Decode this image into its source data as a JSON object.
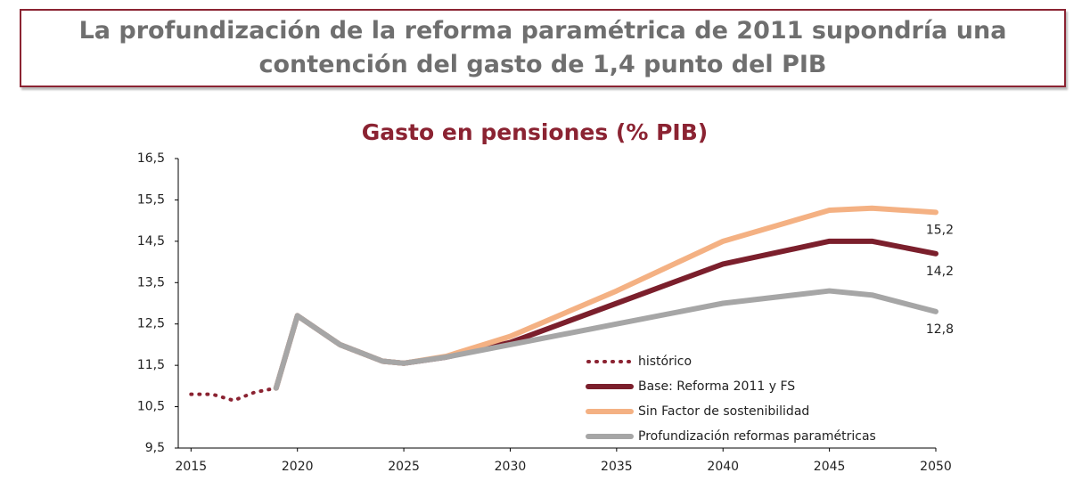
{
  "header": {
    "title": "La profundización de la reforma paramétrica de 2011 supondría una contención del gasto de 1,4 punto del PIB"
  },
  "chart_data": {
    "type": "line",
    "title": "Gasto en pensiones (% PIB)",
    "x": [
      2015,
      2016,
      2017,
      2018,
      2019,
      2020,
      2021,
      2022,
      2023,
      2024,
      2025,
      2027,
      2030,
      2035,
      2040,
      2045,
      2047,
      2050
    ],
    "series": [
      {
        "name": "histórico",
        "color": "#8B2332",
        "style": "dotted",
        "values": [
          10.8,
          10.8,
          10.65,
          10.85,
          10.95,
          null,
          null,
          null,
          null,
          null,
          null,
          null,
          null,
          null,
          null,
          null,
          null,
          null
        ]
      },
      {
        "name": "Base: Reforma 2011 y FS",
        "color": "#7B1F2C",
        "style": "solid",
        "values": [
          null,
          null,
          null,
          null,
          10.95,
          12.7,
          12.35,
          12.0,
          11.8,
          11.6,
          11.55,
          11.7,
          12.05,
          13.0,
          13.95,
          14.5,
          14.5,
          14.2
        ],
        "value_labels": [
          null,
          null,
          null,
          null,
          null,
          null,
          null,
          null,
          null,
          null,
          null,
          null,
          null,
          null,
          null,
          null,
          null,
          "14,2"
        ]
      },
      {
        "name": "Sin Factor de sostenibilidad",
        "color": "#F4B183",
        "style": "solid",
        "values": [
          null,
          null,
          null,
          null,
          10.95,
          12.7,
          12.35,
          12.0,
          11.8,
          11.6,
          11.55,
          11.72,
          12.2,
          13.3,
          14.5,
          15.25,
          15.3,
          15.2
        ],
        "value_labels": [
          null,
          null,
          null,
          null,
          null,
          null,
          null,
          null,
          null,
          null,
          null,
          null,
          null,
          null,
          null,
          null,
          null,
          "15,2"
        ]
      },
      {
        "name": "Profundización reformas paramétricas",
        "color": "#A6A6A6",
        "style": "solid",
        "values": [
          null,
          null,
          null,
          null,
          10.95,
          12.7,
          12.35,
          12.0,
          11.8,
          11.6,
          11.55,
          11.7,
          12.0,
          12.5,
          13.0,
          13.3,
          13.2,
          12.8
        ],
        "value_labels": [
          null,
          null,
          null,
          null,
          null,
          null,
          null,
          null,
          null,
          null,
          null,
          null,
          null,
          null,
          null,
          null,
          null,
          "12,8"
        ]
      }
    ],
    "xlim": [
      2014.4,
      2050
    ],
    "xticks": [
      2015,
      2020,
      2025,
      2030,
      2035,
      2040,
      2045,
      2050
    ],
    "ylim": [
      9.5,
      16.5
    ],
    "yticks": [
      {
        "value": 9.5,
        "label": "9,5"
      },
      {
        "value": 10.5,
        "label": "10,5"
      },
      {
        "value": 11.5,
        "label": "11,5"
      },
      {
        "value": 12.5,
        "label": "12,5"
      },
      {
        "value": 13.5,
        "label": "13,5"
      },
      {
        "value": 14.5,
        "label": "14,5"
      },
      {
        "value": 15.5,
        "label": "15,5"
      },
      {
        "value": 16.5,
        "label": "16,5"
      }
    ],
    "grid": false,
    "legend": "lower right"
  }
}
